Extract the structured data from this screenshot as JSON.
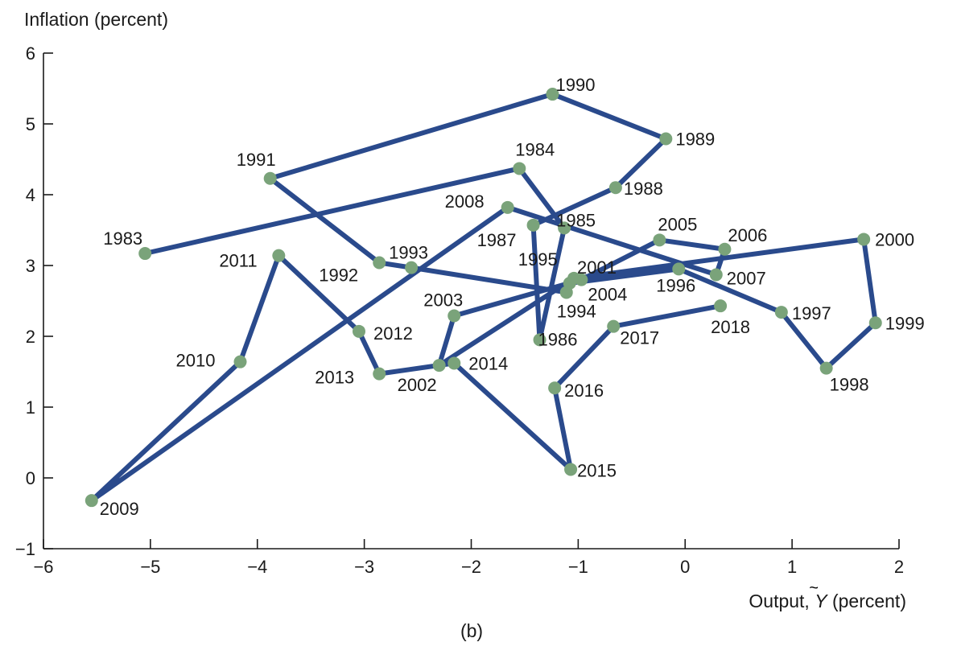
{
  "chart_data": {
    "type": "line",
    "ylabel": "Inflation (percent)",
    "xlabel_prefix": "Output, ",
    "xlabel_symbol": "Y",
    "xlabel_suffix": " (percent)",
    "caption": "(b)",
    "xlim": [
      -6,
      2
    ],
    "ylim": [
      -1,
      6
    ],
    "x_ticks": [
      -6,
      -5,
      -4,
      -3,
      -2,
      -1,
      0,
      1,
      2
    ],
    "x_tick_labels": [
      "−6",
      "−5",
      "−4",
      "−3",
      "−2",
      "−1",
      "0",
      "1",
      "2"
    ],
    "y_ticks": [
      -1,
      0,
      1,
      2,
      3,
      4,
      5,
      6
    ],
    "y_tick_labels": [
      "−1",
      "0",
      "1",
      "2",
      "3",
      "4",
      "5",
      "6"
    ],
    "grid": false,
    "colors": {
      "line": "#2a4a8c",
      "point": "#7aa37a"
    },
    "points": [
      {
        "label": "1983",
        "x": -5.05,
        "y": 3.17
      },
      {
        "label": "1984",
        "x": -1.55,
        "y": 4.37
      },
      {
        "label": "1985",
        "x": -1.13,
        "y": 3.53
      },
      {
        "label": "1986",
        "x": -1.36,
        "y": 1.95
      },
      {
        "label": "1987",
        "x": -1.42,
        "y": 3.57
      },
      {
        "label": "1988",
        "x": -0.65,
        "y": 4.1
      },
      {
        "label": "1989",
        "x": -0.18,
        "y": 4.79
      },
      {
        "label": "1990",
        "x": -1.24,
        "y": 5.42
      },
      {
        "label": "1991",
        "x": -3.88,
        "y": 4.23
      },
      {
        "label": "1992",
        "x": -2.86,
        "y": 3.04
      },
      {
        "label": "1993",
        "x": -2.56,
        "y": 2.97
      },
      {
        "label": "1994",
        "x": -1.11,
        "y": 2.62
      },
      {
        "label": "1995",
        "x": -1.08,
        "y": 2.75
      },
      {
        "label": "1996",
        "x": -0.06,
        "y": 2.95
      },
      {
        "label": "1997",
        "x": 0.9,
        "y": 2.34
      },
      {
        "label": "1998",
        "x": 1.32,
        "y": 1.55
      },
      {
        "label": "1999",
        "x": 1.78,
        "y": 2.19
      },
      {
        "label": "2000",
        "x": 1.67,
        "y": 3.37
      },
      {
        "label": "2001",
        "x": -1.04,
        "y": 2.82
      },
      {
        "label": "2002",
        "x": -2.3,
        "y": 1.59
      },
      {
        "label": "2003",
        "x": -2.16,
        "y": 2.29
      },
      {
        "label": "2004",
        "x": -0.97,
        "y": 2.8
      },
      {
        "label": "2005",
        "x": -0.24,
        "y": 3.36
      },
      {
        "label": "2006",
        "x": 0.37,
        "y": 3.23
      },
      {
        "label": "2007",
        "x": 0.29,
        "y": 2.87
      },
      {
        "label": "2008",
        "x": -1.66,
        "y": 3.82
      },
      {
        "label": "2009",
        "x": -5.55,
        "y": -0.32
      },
      {
        "label": "2010",
        "x": -4.16,
        "y": 1.64
      },
      {
        "label": "2011",
        "x": -3.8,
        "y": 3.14
      },
      {
        "label": "2012",
        "x": -3.05,
        "y": 2.07
      },
      {
        "label": "2013",
        "x": -2.86,
        "y": 1.47
      },
      {
        "label": "2014",
        "x": -2.16,
        "y": 1.62
      },
      {
        "label": "2015",
        "x": -1.07,
        "y": 0.12
      },
      {
        "label": "2016",
        "x": -1.22,
        "y": 1.27
      },
      {
        "label": "2017",
        "x": -0.67,
        "y": 2.14
      },
      {
        "label": "2018",
        "x": 0.33,
        "y": 2.43
      }
    ]
  }
}
